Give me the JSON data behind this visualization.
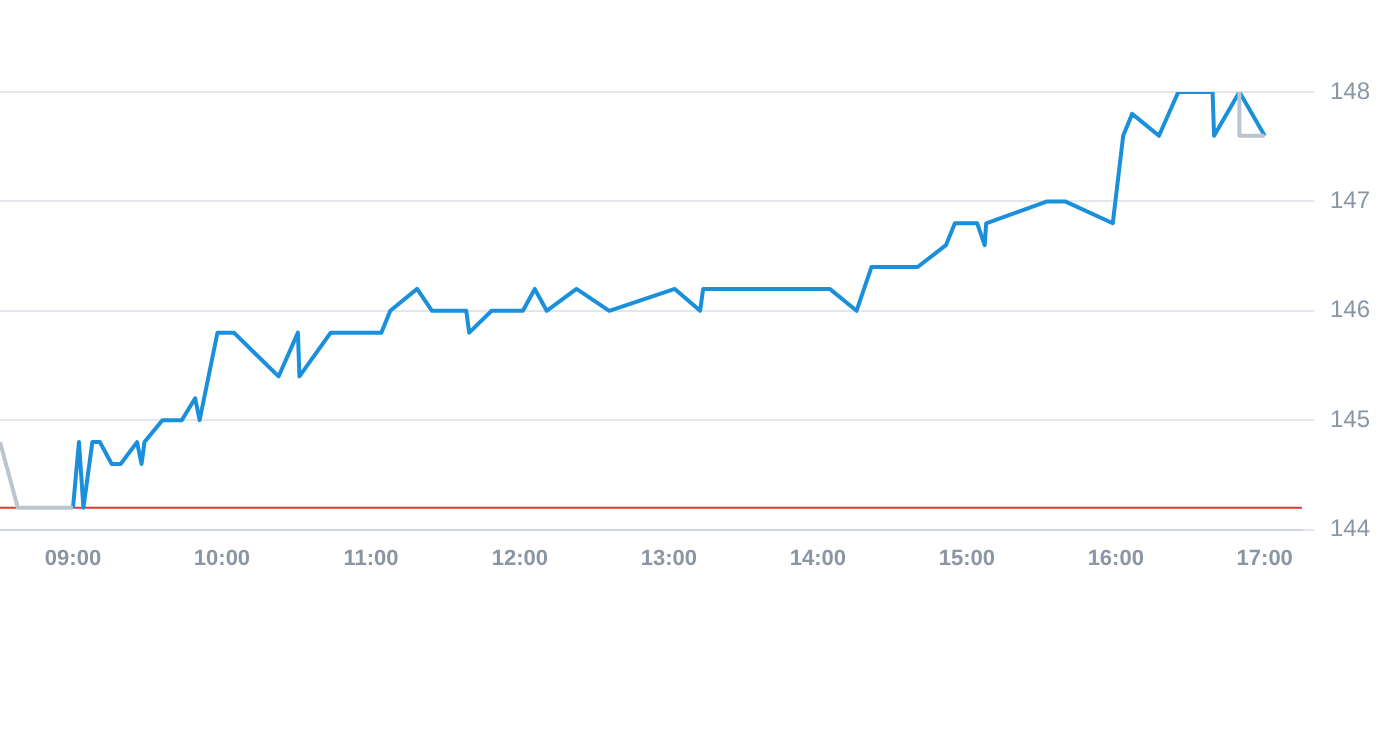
{
  "chart_data": {
    "type": "line",
    "xlim": [
      8.51,
      17.25
    ],
    "xticks": [
      {
        "value": 9,
        "label": "09:00"
      },
      {
        "value": 10,
        "label": "10:00"
      },
      {
        "value": 11,
        "label": "11:00"
      },
      {
        "value": 12,
        "label": "12:00"
      },
      {
        "value": 13,
        "label": "13:00"
      },
      {
        "value": 14,
        "label": "14:00"
      },
      {
        "value": 15,
        "label": "15:00"
      },
      {
        "value": 16,
        "label": "16:00"
      },
      {
        "value": 17,
        "label": "17:00"
      }
    ],
    "ylim": [
      144,
      148
    ],
    "yticks": [
      144,
      145,
      146,
      147,
      148
    ],
    "grid": "y",
    "legend": false,
    "marker": "none",
    "line_style": "solid",
    "ref_lines": [
      {
        "axis": "y",
        "value": 144.2,
        "color": "#e53935"
      }
    ],
    "series": [
      {
        "color": "#bcc5ce",
        "x": [
          8.51,
          8.63,
          9.0,
          null,
          16.83,
          16.83,
          17.0
        ],
        "values": [
          144.8,
          144.2,
          144.2,
          null,
          148.0,
          147.6,
          147.6
        ]
      },
      {
        "color": "#1a8fdc",
        "x": [
          9.0,
          9.04,
          9.07,
          9.13,
          9.18,
          9.26,
          9.32,
          9.43,
          9.46,
          9.48,
          9.6,
          9.73,
          9.82,
          9.85,
          9.97,
          10.08,
          10.38,
          10.51,
          10.52,
          10.73,
          11.07,
          11.13,
          11.31,
          11.41,
          11.64,
          11.66,
          11.81,
          12.02,
          12.1,
          12.18,
          12.38,
          12.6,
          13.04,
          13.21,
          13.23,
          14.08,
          14.26,
          14.36,
          14.67,
          14.86,
          14.92,
          15.07,
          15.12,
          15.13,
          15.54,
          15.66,
          15.98,
          16.05,
          16.11,
          16.29,
          16.42,
          16.65,
          16.66,
          16.83,
          17.0
        ],
        "values": [
          144.2,
          144.8,
          144.2,
          144.8,
          144.8,
          144.6,
          144.6,
          144.8,
          144.6,
          144.8,
          145.0,
          145.0,
          145.2,
          145.0,
          145.8,
          145.8,
          145.4,
          145.8,
          145.4,
          145.8,
          145.8,
          146.0,
          146.2,
          146.0,
          146.0,
          145.8,
          146.0,
          146.0,
          146.2,
          146.0,
          146.2,
          146.0,
          146.2,
          146.0,
          146.2,
          146.2,
          146.0,
          146.4,
          146.4,
          146.6,
          146.8,
          146.8,
          146.6,
          146.8,
          147.0,
          147.0,
          146.8,
          147.6,
          147.8,
          147.6,
          148.0,
          148.0,
          147.6,
          148.0,
          147.6
        ]
      }
    ]
  }
}
